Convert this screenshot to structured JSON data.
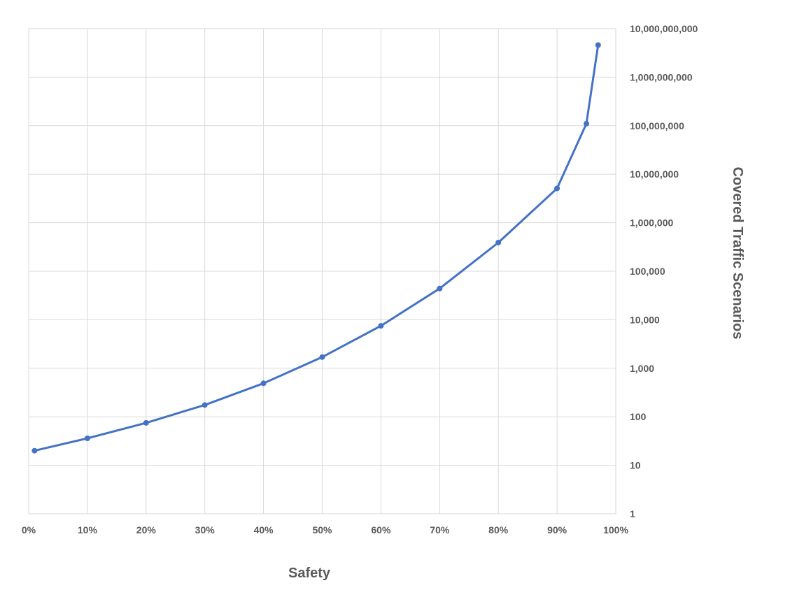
{
  "chart_data": {
    "type": "line",
    "title": "",
    "xlabel": "Safety",
    "ylabel": "Covered Traffic Scenarios",
    "x_scale": "linear",
    "y_scale": "log",
    "xlim": [
      0,
      100
    ],
    "ylim": [
      1,
      10000000000
    ],
    "grid": true,
    "y_axis_position": "right",
    "x_ticks": [
      "0%",
      "10%",
      "20%",
      "30%",
      "40%",
      "50%",
      "60%",
      "70%",
      "80%",
      "90%",
      "100%"
    ],
    "y_ticks": [
      "1",
      "10",
      "100",
      "1,000",
      "10,000",
      "100,000",
      "1,000,000",
      "10,000,000",
      "100,000,000",
      "1,000,000,000",
      "10,000,000,000"
    ],
    "series": [
      {
        "color": "#4472c4",
        "x": [
          1,
          10,
          20,
          30,
          40,
          50,
          60,
          70,
          80,
          90,
          95,
          97
        ],
        "y": [
          20,
          36,
          75,
          175,
          490,
          1700,
          7500,
          44000,
          390000,
          5100000,
          110000000,
          4600000000
        ]
      }
    ]
  }
}
